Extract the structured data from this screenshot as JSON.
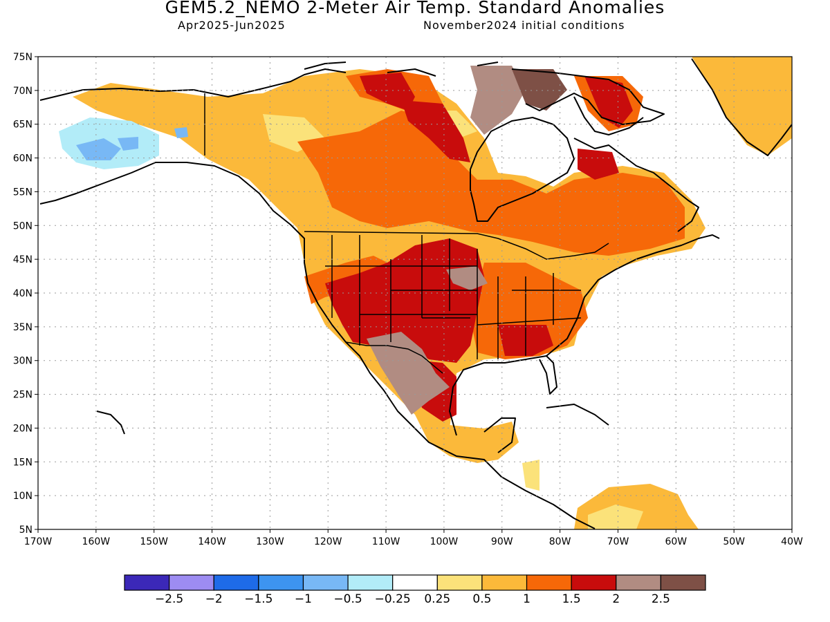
{
  "title": "GEM5.2_NEMO 2-Meter Air Temp. Standard Anomalies",
  "subtitle_left": "Apr2025-Jun2025",
  "subtitle_right": "November2024 initial conditions",
  "lat_labels": [
    "75N",
    "70N",
    "65N",
    "60N",
    "55N",
    "50N",
    "45N",
    "40N",
    "35N",
    "30N",
    "25N",
    "20N",
    "15N",
    "10N",
    "5N"
  ],
  "lon_labels": [
    "170W",
    "160W",
    "150W",
    "140W",
    "130W",
    "120W",
    "110W",
    "100W",
    "90W",
    "80W",
    "70W",
    "60W",
    "50W",
    "40W"
  ],
  "colorbar": {
    "colors": [
      "#3b28b8",
      "#9d8cf2",
      "#1e6be8",
      "#3d94f0",
      "#78b8f5",
      "#b2ecf8",
      "#ffffff",
      "#fbe27a",
      "#fbb93a",
      "#f66808",
      "#c80c0c",
      "#b18c82",
      "#7e5046"
    ],
    "labels": [
      "-2.5",
      "-2",
      "-1.5",
      "-1",
      "-0.5",
      "-0.25",
      "0.25",
      "0.5",
      "1",
      "1.5",
      "2",
      "2.5"
    ]
  },
  "regions": [
    {
      "name": "Alaska cold anomaly",
      "class": "-0.5",
      "color": "#b2ecf8"
    },
    {
      "name": "Southwest US warm anomaly",
      "class": "2",
      "color": "#c80c0c"
    },
    {
      "name": "Mexico plateau anomaly",
      "class": "2.5",
      "color": "#b18c82"
    },
    {
      "name": "Canada warm anomaly",
      "class": "1.5",
      "color": "#f66808"
    }
  ]
}
